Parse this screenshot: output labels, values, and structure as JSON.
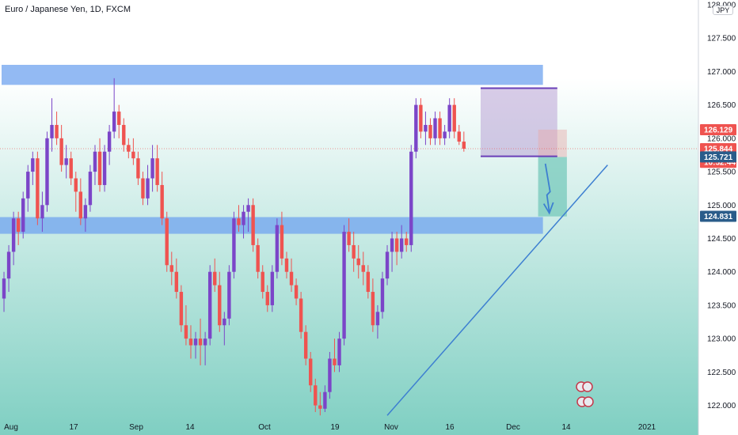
{
  "chart_data": {
    "type": "candlestick",
    "title": "Euro / Japanese Yen, 1D, FXCM",
    "unit": "JPY",
    "yaxis": {
      "range": [
        121.9,
        128.0
      ],
      "ticks": [
        122.0,
        122.5,
        123.0,
        123.5,
        124.0,
        124.5,
        125.0,
        125.5,
        126.0,
        126.5,
        127.0,
        127.5,
        128.0
      ],
      "tick_labels": [
        "122.000",
        "122.500",
        "123.000",
        "123.500",
        "124.000",
        "124.500",
        "125.000",
        "125.500",
        "126.000",
        "126.500",
        "127.000",
        "127.500",
        "128.000"
      ]
    },
    "xaxis": {
      "labels": [
        "Aug",
        "17",
        "Sep",
        "14",
        "Oct",
        "19",
        "Nov",
        "16",
        "Dec",
        "14",
        "2021"
      ]
    },
    "colors": {
      "up": "#7b45c8",
      "down": "#ef5350",
      "up_faded": "#9a6ee0",
      "down_faded": "#f28b8b",
      "zone": "#6fa3ef",
      "trendline": "#3d7fd1",
      "bg_top": "#ffffff",
      "bg_bottom": "#7fcfc2"
    },
    "candles": [
      [
        123.6,
        124.0,
        123.4,
        123.9
      ],
      [
        123.9,
        124.4,
        123.7,
        124.3
      ],
      [
        124.3,
        124.9,
        124.1,
        124.8
      ],
      [
        124.8,
        124.9,
        124.4,
        124.6
      ],
      [
        124.6,
        125.2,
        124.5,
        125.1
      ],
      [
        125.1,
        125.6,
        124.9,
        125.5
      ],
      [
        125.5,
        125.8,
        125.3,
        125.7
      ],
      [
        125.7,
        125.8,
        124.7,
        124.8
      ],
      [
        124.8,
        125.2,
        124.6,
        125.0
      ],
      [
        125.0,
        126.1,
        124.9,
        126.0
      ],
      [
        126.0,
        126.6,
        125.8,
        126.2
      ],
      [
        126.2,
        126.4,
        125.9,
        126.0
      ],
      [
        126.0,
        126.2,
        125.5,
        125.6
      ],
      [
        125.6,
        125.9,
        125.4,
        125.7
      ],
      [
        125.7,
        125.8,
        125.3,
        125.4
      ],
      [
        125.4,
        125.5,
        124.9,
        125.2
      ],
      [
        125.2,
        125.4,
        124.7,
        124.8
      ],
      [
        124.8,
        125.1,
        124.6,
        125.0
      ],
      [
        125.0,
        125.6,
        124.9,
        125.5
      ],
      [
        125.5,
        125.9,
        125.3,
        125.8
      ],
      [
        125.8,
        126.0,
        125.2,
        125.3
      ],
      [
        125.3,
        125.9,
        125.2,
        125.8
      ],
      [
        125.8,
        126.2,
        125.6,
        126.1
      ],
      [
        126.1,
        126.9,
        126.0,
        126.4
      ],
      [
        126.4,
        126.5,
        126.0,
        126.2
      ],
      [
        126.2,
        126.3,
        125.8,
        125.9
      ],
      [
        125.9,
        126.0,
        125.7,
        125.8
      ],
      [
        125.8,
        126.0,
        125.6,
        125.7
      ],
      [
        125.7,
        125.8,
        125.3,
        125.4
      ],
      [
        125.4,
        125.5,
        125.0,
        125.1
      ],
      [
        125.1,
        125.6,
        125.0,
        125.4
      ],
      [
        125.4,
        125.9,
        125.2,
        125.7
      ],
      [
        125.7,
        125.9,
        125.2,
        125.3
      ],
      [
        125.3,
        125.5,
        124.7,
        124.8
      ],
      [
        124.8,
        124.9,
        124.0,
        124.1
      ],
      [
        124.1,
        124.3,
        123.8,
        124.0
      ],
      [
        124.0,
        124.2,
        123.6,
        123.7
      ],
      [
        123.7,
        123.8,
        123.1,
        123.2
      ],
      [
        123.2,
        123.5,
        122.9,
        123.0
      ],
      [
        123.0,
        123.2,
        122.7,
        122.9
      ],
      [
        122.9,
        123.1,
        122.7,
        123.0
      ],
      [
        123.0,
        123.3,
        122.6,
        122.9
      ],
      [
        122.9,
        123.1,
        122.6,
        123.0
      ],
      [
        123.0,
        124.1,
        122.9,
        124.0
      ],
      [
        124.0,
        124.2,
        123.7,
        123.8
      ],
      [
        123.8,
        124.0,
        123.1,
        123.2
      ],
      [
        123.2,
        123.4,
        122.9,
        123.3
      ],
      [
        123.3,
        124.1,
        123.2,
        124.0
      ],
      [
        124.0,
        124.9,
        123.9,
        124.8
      ],
      [
        124.8,
        125.0,
        124.6,
        124.7
      ],
      [
        124.7,
        125.0,
        124.5,
        124.9
      ],
      [
        124.9,
        125.1,
        124.6,
        125.0
      ],
      [
        125.0,
        125.1,
        124.3,
        124.4
      ],
      [
        124.4,
        124.5,
        123.9,
        124.0
      ],
      [
        124.0,
        124.1,
        123.6,
        123.7
      ],
      [
        123.7,
        123.8,
        123.4,
        123.5
      ],
      [
        123.5,
        124.1,
        123.4,
        124.0
      ],
      [
        124.0,
        124.8,
        123.9,
        124.7
      ],
      [
        124.7,
        124.9,
        124.1,
        124.2
      ],
      [
        124.2,
        124.3,
        123.9,
        124.0
      ],
      [
        124.0,
        124.2,
        123.7,
        123.8
      ],
      [
        123.8,
        123.9,
        123.5,
        123.6
      ],
      [
        123.6,
        123.7,
        123.0,
        123.1
      ],
      [
        123.1,
        123.2,
        122.6,
        122.7
      ],
      [
        122.7,
        122.8,
        122.2,
        122.3
      ],
      [
        122.3,
        122.4,
        121.9,
        122.0
      ],
      [
        122.0,
        122.2,
        121.85,
        121.95
      ],
      [
        121.95,
        122.3,
        121.9,
        122.2
      ],
      [
        122.2,
        122.8,
        122.1,
        122.7
      ],
      [
        122.7,
        123.0,
        122.5,
        122.6
      ],
      [
        122.6,
        123.1,
        122.5,
        123.0
      ],
      [
        123.0,
        124.7,
        122.9,
        124.6
      ],
      [
        124.6,
        124.8,
        124.3,
        124.4
      ],
      [
        124.4,
        124.6,
        124.0,
        124.2
      ],
      [
        124.2,
        124.4,
        123.9,
        124.1
      ],
      [
        124.1,
        124.3,
        123.8,
        124.0
      ],
      [
        124.0,
        124.1,
        123.6,
        123.7
      ],
      [
        123.7,
        123.9,
        123.1,
        123.2
      ],
      [
        123.2,
        123.5,
        123.0,
        123.4
      ],
      [
        123.4,
        124.0,
        123.3,
        123.9
      ],
      [
        123.9,
        124.4,
        123.8,
        124.3
      ],
      [
        124.3,
        124.6,
        124.0,
        124.5
      ],
      [
        124.5,
        124.6,
        124.1,
        124.3
      ],
      [
        124.3,
        124.7,
        124.2,
        124.5
      ],
      [
        124.5,
        124.6,
        124.3,
        124.4
      ],
      [
        124.4,
        125.9,
        124.3,
        125.8
      ],
      [
        125.8,
        126.6,
        125.7,
        126.5
      ],
      [
        126.5,
        126.6,
        126.0,
        126.1
      ],
      [
        126.1,
        126.4,
        125.9,
        126.2
      ],
      [
        126.2,
        126.3,
        125.9,
        126.0
      ],
      [
        126.0,
        126.4,
        125.9,
        126.3
      ],
      [
        126.3,
        126.4,
        125.9,
        126.0
      ],
      [
        126.0,
        126.2,
        125.9,
        126.1
      ],
      [
        126.1,
        126.6,
        126.0,
        126.5
      ],
      [
        126.5,
        126.6,
        126.0,
        126.1
      ],
      [
        126.1,
        126.2,
        125.9,
        125.95
      ],
      [
        125.95,
        126.1,
        125.8,
        125.844
      ]
    ],
    "boxes": [
      {
        "name": "resistance-zone",
        "from": 0,
        "to": 112,
        "low": 126.8,
        "high": 127.1,
        "color": "#6fa3ef",
        "opacity": 0.75
      },
      {
        "name": "support-zone",
        "from": -5,
        "to": 112,
        "low": 124.57,
        "high": 124.82,
        "color": "#6fa3ef",
        "opacity": 0.75
      },
      {
        "name": "consolidation-box",
        "from": 100,
        "to": 115,
        "low": 125.73,
        "high": 126.75,
        "color": "#b9a3d6",
        "opacity": 0.55
      },
      {
        "name": "projection-box",
        "from": 112,
        "to": 117,
        "low": 124.83,
        "high": 125.72,
        "color": "#6fc6b8",
        "opacity": 0.7
      },
      {
        "name": "stop-box",
        "from": 112,
        "to": 117,
        "low": 125.72,
        "high": 126.13,
        "color": "#e9a8a8",
        "opacity": 0.45
      }
    ],
    "trendline": {
      "from_index": 80,
      "from_price": 121.85,
      "to_index": 126,
      "to_price": 125.6
    },
    "current_price": 125.844,
    "price_labels": [
      {
        "value": 126.129,
        "text": "126.129",
        "bg": "#ef5350"
      },
      {
        "value": 125.844,
        "text": "125.844",
        "bg": "#ef5350"
      },
      {
        "value": 125.64,
        "text": "16:52:44",
        "bg": "#ef5350"
      },
      {
        "value": 125.721,
        "text": "125.721",
        "bg": "#2a5c8a"
      },
      {
        "value": 124.831,
        "text": "124.831",
        "bg": "#2a5c8a"
      }
    ]
  }
}
